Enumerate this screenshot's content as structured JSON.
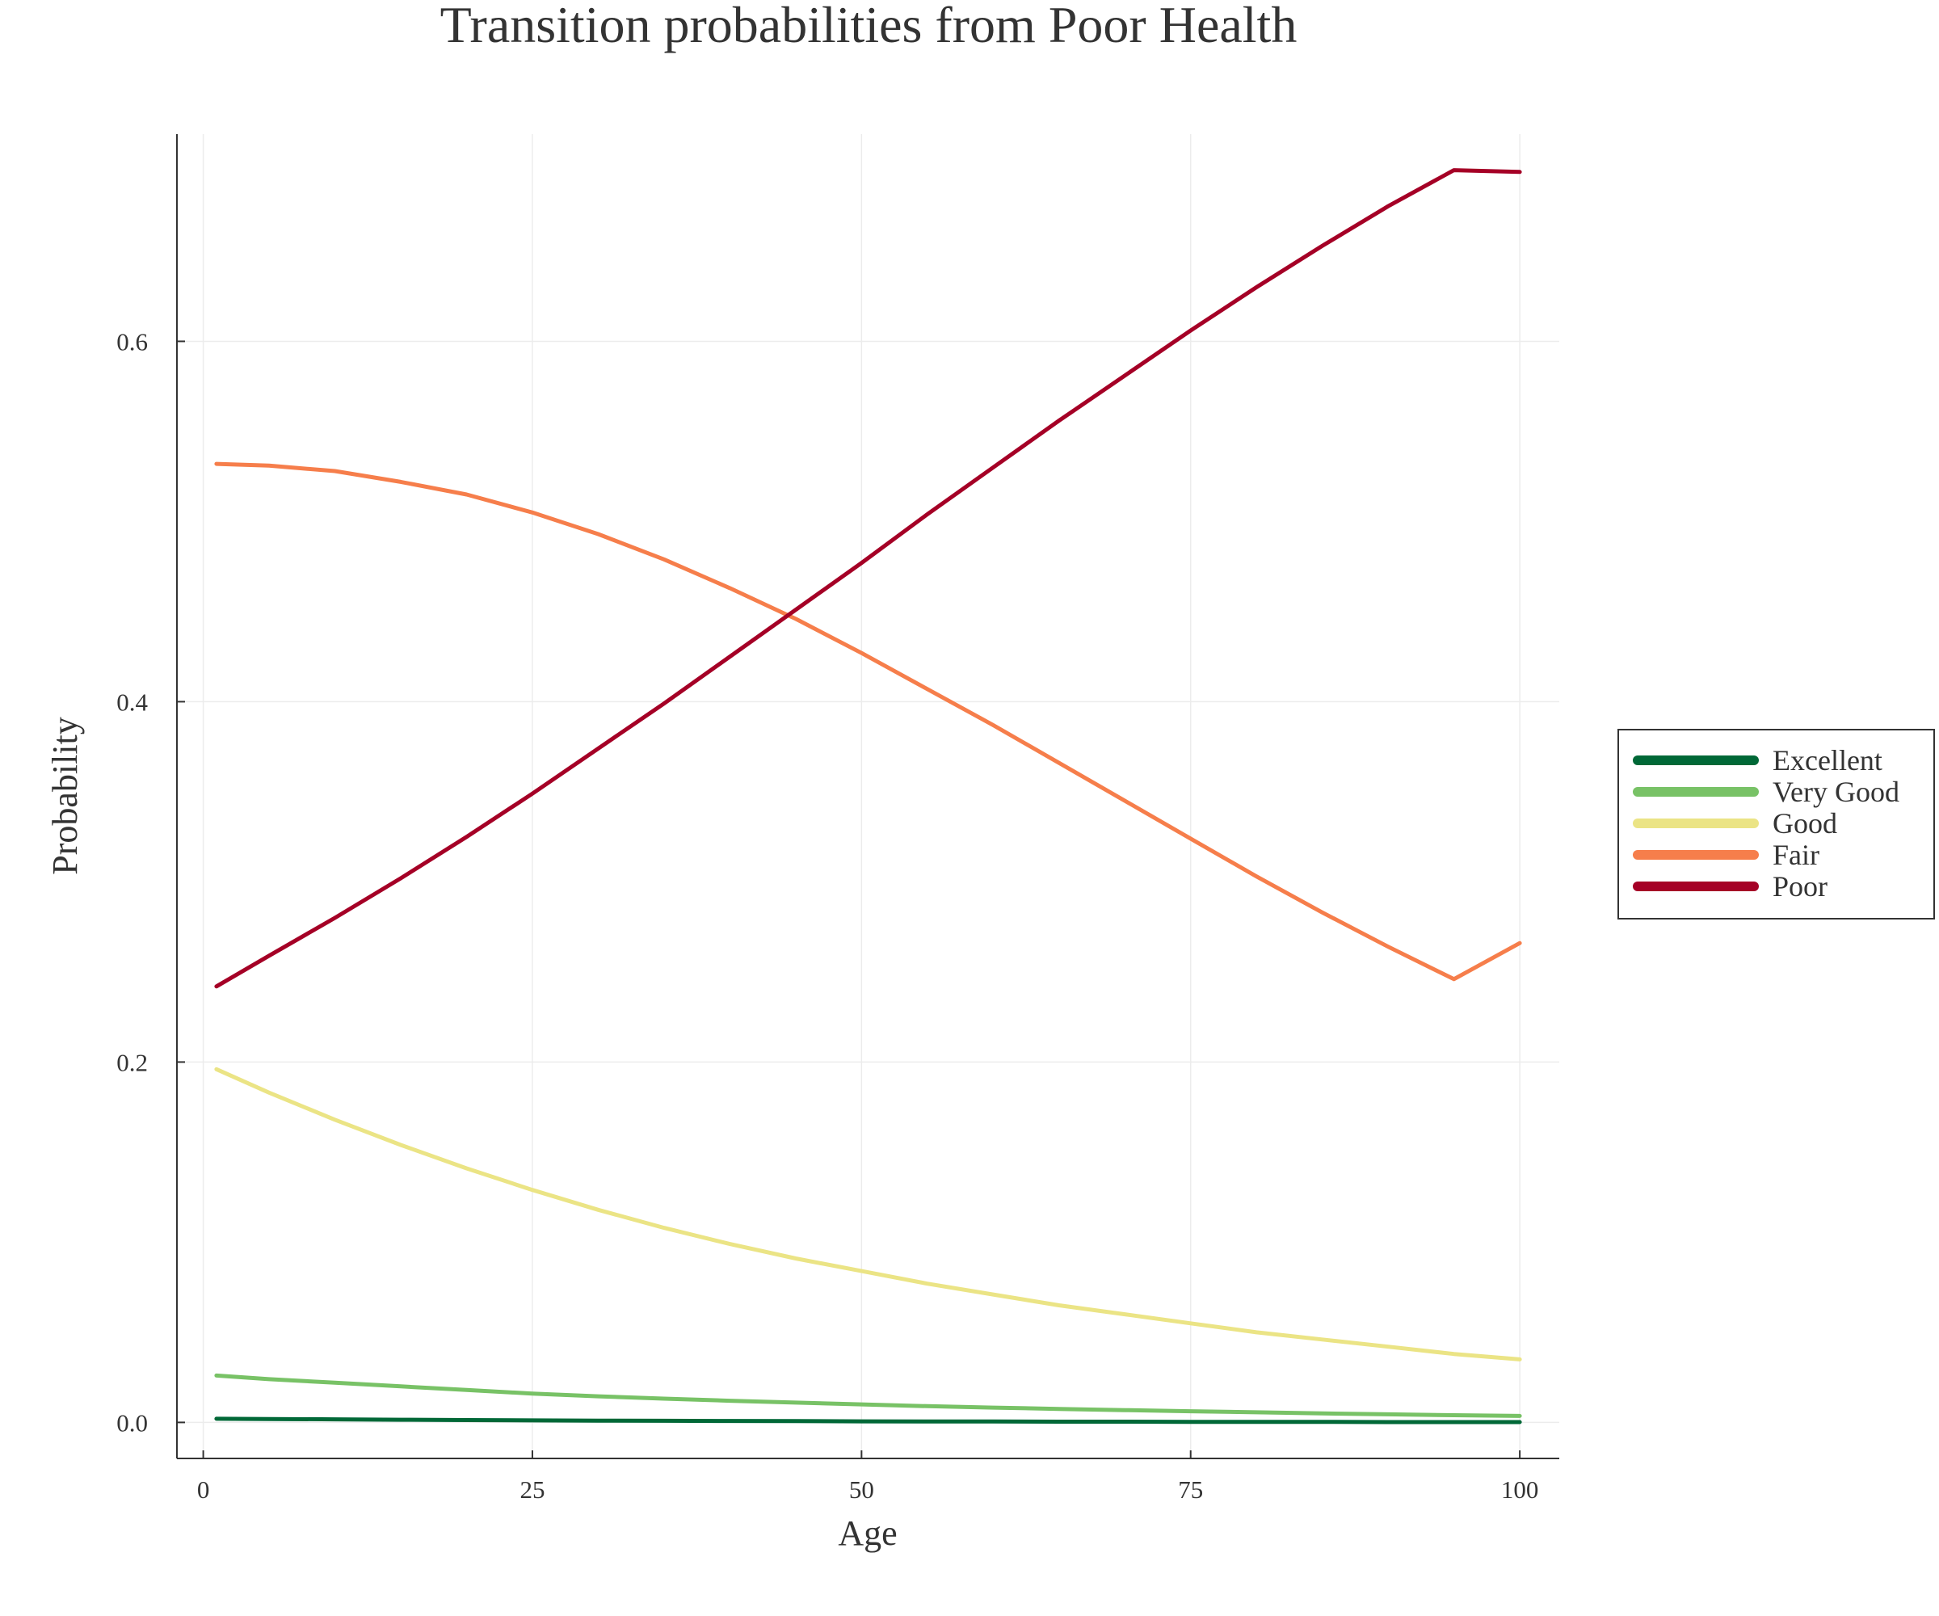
{
  "chart_data": {
    "type": "line",
    "title": "Transition probabilities from Poor Health",
    "xlabel": "Age",
    "ylabel": "Probability",
    "xlim": [
      -2,
      103
    ],
    "ylim": [
      -0.02,
      0.715
    ],
    "xticks": [
      0,
      25,
      50,
      75,
      100
    ],
    "xtick_labels": [
      "0",
      "25",
      "50",
      "75",
      "100"
    ],
    "yticks": [
      0.0,
      0.2,
      0.4,
      0.6
    ],
    "ytick_labels": [
      "0.0",
      "0.2",
      "0.4",
      "0.6"
    ],
    "grid": true,
    "legend": "right",
    "x": [
      1,
      5,
      10,
      15,
      20,
      25,
      30,
      35,
      40,
      45,
      50,
      55,
      60,
      65,
      70,
      75,
      80,
      85,
      90,
      95,
      100
    ],
    "series": [
      {
        "name": "Excellent",
        "color": "#006837",
        "values": [
          0.002,
          0.0019,
          0.0017,
          0.0015,
          0.0013,
          0.0011,
          0.001,
          0.0009,
          0.0008,
          0.0007,
          0.0006,
          0.0005,
          0.0005,
          0.0004,
          0.0004,
          0.0003,
          0.0003,
          0.0003,
          0.0002,
          0.0002,
          0.0002
        ]
      },
      {
        "name": "Very Good",
        "color": "#78c266",
        "values": [
          0.026,
          0.024,
          0.022,
          0.02,
          0.018,
          0.016,
          0.0145,
          0.0132,
          0.012,
          0.011,
          0.01,
          0.009,
          0.0082,
          0.0075,
          0.0068,
          0.0062,
          0.0056,
          0.005,
          0.0045,
          0.004,
          0.0036
        ]
      },
      {
        "name": "Good",
        "color": "#ebe485",
        "values": [
          0.196,
          0.183,
          0.168,
          0.154,
          0.141,
          0.129,
          0.118,
          0.108,
          0.099,
          0.091,
          0.084,
          0.077,
          0.071,
          0.065,
          0.06,
          0.055,
          0.05,
          0.046,
          0.042,
          0.038,
          0.035
        ]
      },
      {
        "name": "Fair",
        "color": "#f67e4b",
        "values": [
          0.532,
          0.531,
          0.528,
          0.522,
          0.515,
          0.505,
          0.493,
          0.479,
          0.463,
          0.446,
          0.427,
          0.407,
          0.387,
          0.366,
          0.345,
          0.324,
          0.303,
          0.283,
          0.264,
          0.246,
          0.266
        ]
      },
      {
        "name": "Poor",
        "color": "#a50026",
        "values": [
          0.242,
          0.259,
          0.28,
          0.302,
          0.325,
          0.349,
          0.374,
          0.399,
          0.425,
          0.451,
          0.477,
          0.504,
          0.53,
          0.556,
          0.581,
          0.606,
          0.63,
          0.653,
          0.675,
          0.695,
          0.694
        ]
      }
    ]
  }
}
